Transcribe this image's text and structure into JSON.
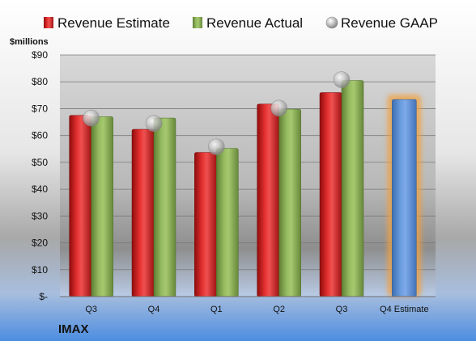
{
  "chart_data": {
    "type": "bar",
    "title": "",
    "unit_label": "$millions",
    "company": "IMAX",
    "categories": [
      "Q3",
      "Q4",
      "Q1",
      "Q2",
      "Q3",
      "Q4 Estimate"
    ],
    "ylim": [
      0,
      90
    ],
    "y_ticks": [
      {
        "value": 0,
        "label": "$-"
      },
      {
        "value": 10,
        "label": "$10"
      },
      {
        "value": 20,
        "label": "$20"
      },
      {
        "value": 30,
        "label": "$30"
      },
      {
        "value": 40,
        "label": "$40"
      },
      {
        "value": 50,
        "label": "$50"
      },
      {
        "value": 60,
        "label": "$60"
      },
      {
        "value": 70,
        "label": "$70"
      },
      {
        "value": 80,
        "label": "$80"
      },
      {
        "value": 90,
        "label": "$90"
      }
    ],
    "grid": true,
    "legend_position": "top",
    "series": [
      {
        "name": "Revenue Estimate",
        "kind": "bar",
        "color": "#d42020",
        "values": [
          67.5,
          62.3,
          53.7,
          71.7,
          76.0,
          null
        ]
      },
      {
        "name": "Revenue Actual",
        "kind": "bar",
        "color": "#84a850",
        "values": [
          67.0,
          66.5,
          55.2,
          69.8,
          80.5,
          null
        ]
      },
      {
        "name": "Revenue GAAP",
        "kind": "marker",
        "color": "#b8b8b8",
        "values": [
          66.5,
          64.5,
          55.8,
          70.2,
          80.8,
          null
        ]
      }
    ],
    "estimate": {
      "category_index": 5,
      "value": 73.4,
      "color": "#5b8fd2",
      "highlight_color": "#f0a040"
    }
  }
}
